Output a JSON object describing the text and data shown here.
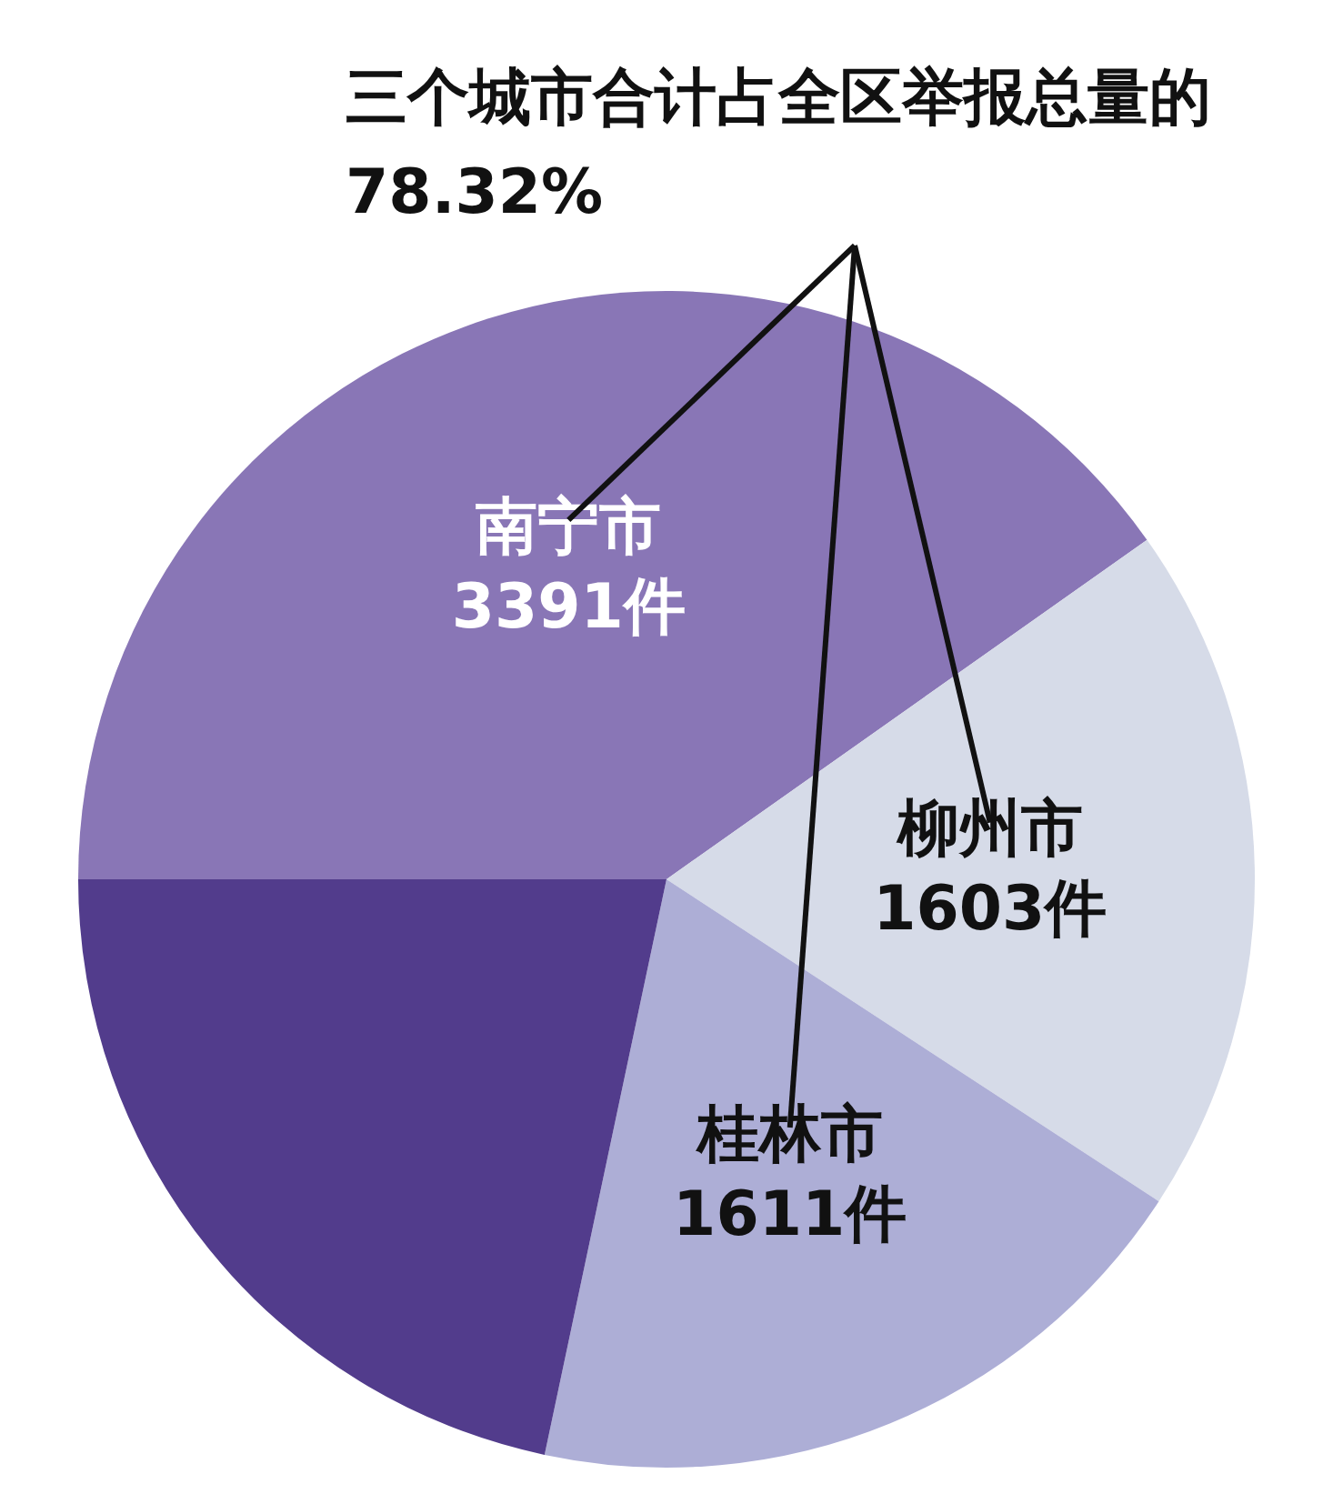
{
  "chart_data": {
    "type": "pie",
    "categories": [
      "南宁市",
      "柳州市",
      "桂林市",
      null
    ],
    "values": [
      3391,
      1603,
      1611,
      1828
    ],
    "value_labels": [
      "3391件",
      "1603件",
      "1611件",
      null
    ],
    "colors": [
      "#8976b6",
      "#d6dbe8",
      "#adaed6",
      "#523c8c"
    ],
    "annotations": [
      "三个城市合计占全区举报总量的78.32%"
    ],
    "legend": false
  }
}
